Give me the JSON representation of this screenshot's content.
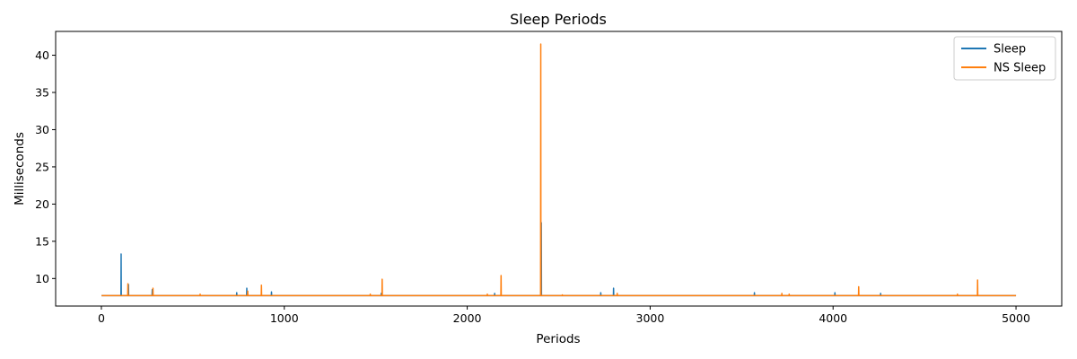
{
  "chart_data": {
    "type": "line",
    "title": "Sleep Periods",
    "xlabel": "Periods",
    "ylabel": "Milliseconds",
    "xlim": [
      -250,
      5250
    ],
    "ylim": [
      6.3,
      43.2
    ],
    "xticks": [
      0,
      1000,
      2000,
      3000,
      4000,
      5000
    ],
    "yticks": [
      10,
      15,
      20,
      25,
      30,
      35,
      40
    ],
    "baseline": 7.7,
    "n_points": 5000,
    "legend_position": "top-right",
    "series": [
      {
        "name": "Sleep",
        "color": "#1f77b4",
        "baseline": 7.7,
        "spikes": [
          [
            108,
            13.3
          ],
          [
            148,
            9.2
          ],
          [
            278,
            8.5
          ],
          [
            740,
            8.1
          ],
          [
            795,
            8.7
          ],
          [
            930,
            8.2
          ],
          [
            1530,
            8.0
          ],
          [
            2150,
            8.0
          ],
          [
            2405,
            17.5
          ],
          [
            2730,
            8.1
          ],
          [
            2800,
            8.7
          ],
          [
            3570,
            8.1
          ],
          [
            4010,
            8.1
          ],
          [
            4260,
            8.0
          ]
        ]
      },
      {
        "name": "NS Sleep",
        "color": "#ff7f0e",
        "baseline": 7.7,
        "spikes": [
          [
            145,
            9.3
          ],
          [
            282,
            8.7
          ],
          [
            540,
            7.9
          ],
          [
            800,
            8.3
          ],
          [
            875,
            9.1
          ],
          [
            1470,
            7.9
          ],
          [
            1535,
            9.9
          ],
          [
            2110,
            7.9
          ],
          [
            2185,
            10.4
          ],
          [
            2402,
            41.5
          ],
          [
            2520,
            7.8
          ],
          [
            2820,
            8.0
          ],
          [
            3720,
            8.0
          ],
          [
            3760,
            7.9
          ],
          [
            4140,
            8.9
          ],
          [
            4680,
            7.9
          ],
          [
            4790,
            9.8
          ]
        ]
      }
    ]
  }
}
